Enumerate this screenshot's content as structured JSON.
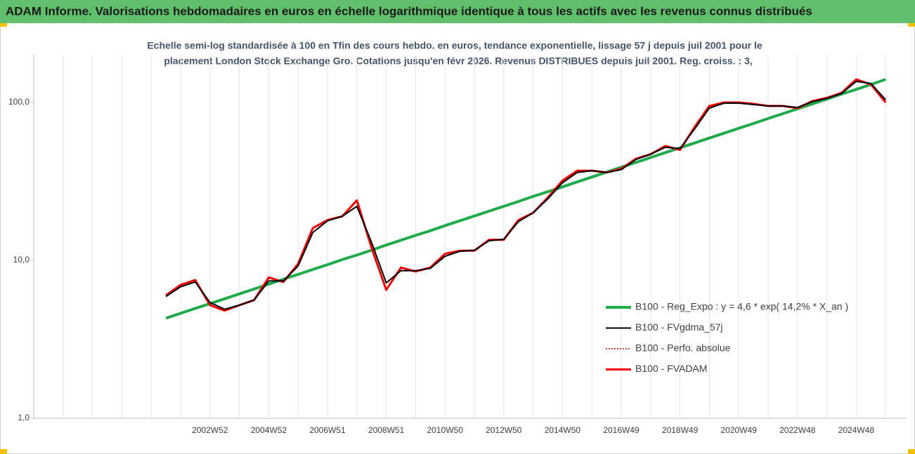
{
  "chart_data": {
    "type": "line",
    "title": "ADAM Informe. Valorisations hebdomadaires en euros en échelle logarithmique identique à tous les actifs avec les revenus connus distribués",
    "subtitle": [
      "Echelle semi-log standardisée à 100 en Tfin des cours hebdo. en euros, tendance exponentielle, lissage 57 j depuis juil 2001 pour le",
      "placement London Stock Exchange Gro. Cotations jusqu'en févr 2026. Revenus DISTRIBUES depuis juil 2001. Reg. croiss. : 3,"
    ],
    "categories": [
      null,
      null,
      null,
      null,
      null,
      null,
      null,
      null,
      null,
      null,
      null,
      null,
      "2002W52",
      null,
      null,
      null,
      "2004W52",
      null,
      null,
      null,
      "2006W51",
      null,
      null,
      null,
      "2008W51",
      null,
      null,
      null,
      "2010W50",
      null,
      null,
      null,
      "2012W50",
      null,
      null,
      null,
      "2014W50",
      null,
      null,
      null,
      "2016W49",
      null,
      null,
      null,
      "2018W49",
      null,
      null,
      null,
      "2020W49",
      null,
      null,
      null,
      "2022W48",
      null,
      null,
      null,
      "2024W48",
      null,
      null
    ],
    "log_scale": true,
    "ylim": [
      1,
      200
    ],
    "yticks": [
      {
        "value": 1,
        "label": "1,0"
      },
      {
        "value": 10,
        "label": "10,0"
      },
      {
        "value": 100,
        "label": "100,0"
      }
    ],
    "grid": true,
    "legend": "lower right",
    "series": [
      {
        "name": "B100 - Reg_Expo : y = 4,6 * exp( 14,2% *  X_an )",
        "color": "#1faa4b",
        "line_style": "solid",
        "width": 4,
        "values": [
          null,
          null,
          null,
          null,
          null,
          null,
          null,
          null,
          null,
          4.3,
          4.62,
          4.96,
          5.32,
          5.71,
          6.13,
          6.58,
          7.07,
          7.59,
          8.15,
          8.75,
          9.39,
          10.1,
          10.8,
          11.6,
          12.5,
          13.4,
          14.4,
          15.4,
          16.6,
          17.8,
          19.1,
          20.5,
          22.0,
          23.6,
          25.4,
          27.2,
          29.2,
          31.4,
          33.7,
          36.2,
          38.9,
          41.7,
          44.8,
          48.1,
          51.6,
          55.4,
          59.5,
          63.9,
          68.6,
          73.6,
          79.1,
          84.9,
          91.1,
          97.8,
          105,
          113,
          121,
          130,
          140
        ]
      },
      {
        "name": "B100 - FVgdma_57j",
        "color": "#000000",
        "line_style": "solid",
        "width": 2,
        "values": [
          null,
          null,
          null,
          null,
          null,
          null,
          null,
          null,
          null,
          5.9,
          6.8,
          7.3,
          5.4,
          4.9,
          5.2,
          5.6,
          7.4,
          7.4,
          9.2,
          15,
          17.8,
          19,
          22,
          13,
          7.2,
          8.6,
          8.6,
          8.9,
          10.6,
          11.4,
          11.6,
          13.3,
          13.6,
          17.6,
          20,
          24.5,
          31,
          36,
          37,
          36,
          37.5,
          43.5,
          47,
          52,
          51,
          68,
          92,
          99,
          99,
          97,
          95,
          95,
          93,
          101,
          106,
          114,
          136,
          132,
          104
        ]
      },
      {
        "name": "B100 - Perfo. absolue",
        "color": "#c00000",
        "line_style": "dotted",
        "width": 1.5,
        "values": [
          null,
          null,
          null,
          null,
          null,
          null,
          null,
          null,
          null,
          6.0,
          7.0,
          7.5,
          5.2,
          4.8,
          5.2,
          5.6,
          7.8,
          7.3,
          9.5,
          16,
          18,
          19,
          24,
          12,
          6.5,
          9.0,
          8.5,
          9.0,
          11,
          11.5,
          11.5,
          13.5,
          13.5,
          18,
          20,
          25,
          32,
          37,
          37,
          36,
          38,
          44,
          47,
          53,
          50,
          70,
          95,
          100,
          100,
          98,
          95,
          95,
          92,
          102,
          107,
          115,
          140,
          130,
          100
        ]
      },
      {
        "name": "B100 - FVADAM",
        "color": "#ff0000",
        "line_style": "solid",
        "width": 3,
        "values": [
          null,
          null,
          null,
          null,
          null,
          null,
          null,
          null,
          null,
          6.0,
          7.0,
          7.5,
          5.2,
          4.8,
          5.2,
          5.6,
          7.8,
          7.3,
          9.5,
          16,
          18,
          19,
          24,
          12,
          6.5,
          9.0,
          8.5,
          9.0,
          11,
          11.5,
          11.5,
          13.5,
          13.5,
          18,
          20,
          25,
          32,
          37,
          37,
          36,
          38,
          44,
          47,
          53,
          50,
          70,
          95,
          100,
          100,
          98,
          95,
          95,
          92,
          102,
          107,
          115,
          140,
          130,
          100
        ]
      }
    ]
  }
}
